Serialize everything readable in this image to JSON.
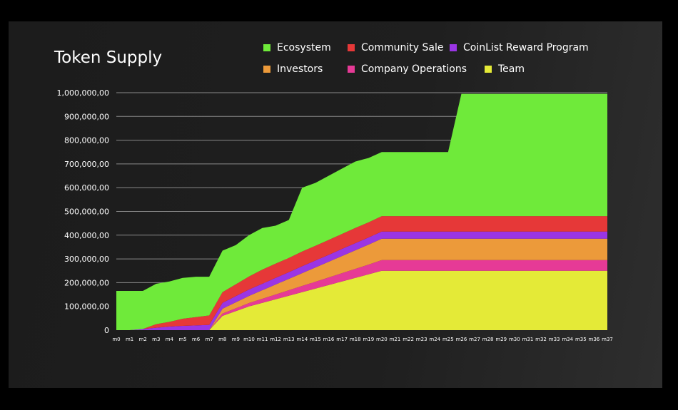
{
  "chart_data": {
    "type": "area",
    "stacked": true,
    "title": "Token Supply",
    "xlabel": "",
    "ylabel": "",
    "ylim": [
      0,
      1000000
    ],
    "y_ticks": [
      "0",
      "100,000,00",
      "200,000,00",
      "300,000,00",
      "400,000,00",
      "500,000,00",
      "600,000,00",
      "700,000,00",
      "800,000,00",
      "900,000,00",
      "1,000,000,00"
    ],
    "x": [
      "m0",
      "m1",
      "m2",
      "m3",
      "m4",
      "m5",
      "m6",
      "m7",
      "m8",
      "m9",
      "m10",
      "m11",
      "m12",
      "m13",
      "m14",
      "m15",
      "m16",
      "m17",
      "m18",
      "m19",
      "m20",
      "m21",
      "m22",
      "m23",
      "m24",
      "m25",
      "m26",
      "m27",
      "m28",
      "m29",
      "m30",
      "m31",
      "m32",
      "m33",
      "m34",
      "m35",
      "m36",
      "m37"
    ],
    "x_tick_labels": [
      "m0",
      "m1",
      "m2",
      "m3",
      "m4",
      "m5",
      "m6",
      "m7",
      "m8",
      "m9",
      "m10",
      "m11",
      "m12",
      "m13",
      "m14",
      "m15",
      "m16",
      "m17",
      "m18",
      "m19",
      "m20",
      "m21",
      "m22",
      "m23",
      "m24",
      "m25",
      "m26",
      "m27",
      "m28",
      "m29",
      "m30",
      "m31",
      "m32",
      "m33",
      "m34",
      "m35",
      "m36",
      "m37"
    ],
    "grid": "horizontal",
    "legend_placement": "top",
    "series": [
      {
        "name": "Team",
        "color": "#e4ea37",
        "values": [
          0,
          0,
          0,
          0,
          0,
          0,
          0,
          0,
          60000,
          80000,
          100000,
          115000,
          130000,
          145000,
          160000,
          175000,
          190000,
          205000,
          220000,
          235000,
          250000,
          250000,
          250000,
          250000,
          250000,
          250000,
          250000,
          250000,
          250000,
          250000,
          250000,
          250000,
          250000,
          250000,
          250000,
          250000,
          250000,
          250000
        ]
      },
      {
        "name": "Company Operations",
        "color": "#e63a96",
        "values": [
          0,
          0,
          0,
          0,
          0,
          0,
          0,
          0,
          10000,
          12000,
          14000,
          17000,
          20000,
          23000,
          26000,
          29000,
          32000,
          35000,
          38000,
          41000,
          45000,
          45000,
          45000,
          45000,
          45000,
          45000,
          45000,
          45000,
          45000,
          45000,
          45000,
          45000,
          45000,
          45000,
          45000,
          45000,
          45000,
          45000
        ]
      },
      {
        "name": "Investors",
        "color": "#ec9a3a",
        "values": [
          0,
          0,
          0,
          0,
          0,
          0,
          0,
          0,
          20000,
          25000,
          30000,
          36000,
          42000,
          48000,
          54000,
          60000,
          66000,
          72000,
          78000,
          84000,
          90000,
          90000,
          90000,
          90000,
          90000,
          90000,
          90000,
          90000,
          90000,
          90000,
          90000,
          90000,
          90000,
          90000,
          90000,
          90000,
          90000,
          90000
        ]
      },
      {
        "name": "CoinList Reward Program",
        "color": "#9a35e4",
        "values": [
          0,
          0,
          5000,
          10000,
          15000,
          18000,
          20000,
          22000,
          25000,
          26000,
          27000,
          27000,
          28000,
          28000,
          29000,
          29000,
          29000,
          30000,
          30000,
          30000,
          30000,
          30000,
          30000,
          30000,
          30000,
          30000,
          30000,
          30000,
          30000,
          30000,
          30000,
          30000,
          30000,
          30000,
          30000,
          30000,
          30000,
          30000
        ]
      },
      {
        "name": "Community Sale",
        "color": "#e63838",
        "values": [
          0,
          0,
          0,
          15000,
          20000,
          30000,
          35000,
          40000,
          45000,
          50000,
          55000,
          60000,
          60000,
          60000,
          62000,
          62000,
          63000,
          63000,
          64000,
          64000,
          65000,
          65000,
          65000,
          65000,
          65000,
          65000,
          65000,
          65000,
          65000,
          65000,
          65000,
          65000,
          65000,
          65000,
          65000,
          65000,
          65000,
          65000
        ]
      },
      {
        "name": "Ecosystem",
        "color": "#6fea3a",
        "values": [
          165000,
          165000,
          160000,
          170000,
          170000,
          172000,
          170000,
          163000,
          175000,
          165000,
          174000,
          175000,
          160000,
          160000,
          269000,
          265000,
          270000,
          275000,
          280000,
          271000,
          270000,
          270000,
          270000,
          270000,
          270000,
          270000,
          515000,
          515000,
          515000,
          515000,
          515000,
          515000,
          515000,
          515000,
          515000,
          515000,
          515000,
          515000
        ]
      }
    ]
  },
  "legend": [
    {
      "label": "Ecosystem",
      "color": "#6fea3a"
    },
    {
      "label": "Community Sale",
      "color": "#e63838"
    },
    {
      "label": "CoinList Reward Program",
      "color": "#9a35e4"
    },
    {
      "label": "Investors",
      "color": "#ec9a3a"
    },
    {
      "label": "Company Operations",
      "color": "#e63a96"
    },
    {
      "label": "Team",
      "color": "#e4ea37"
    }
  ]
}
